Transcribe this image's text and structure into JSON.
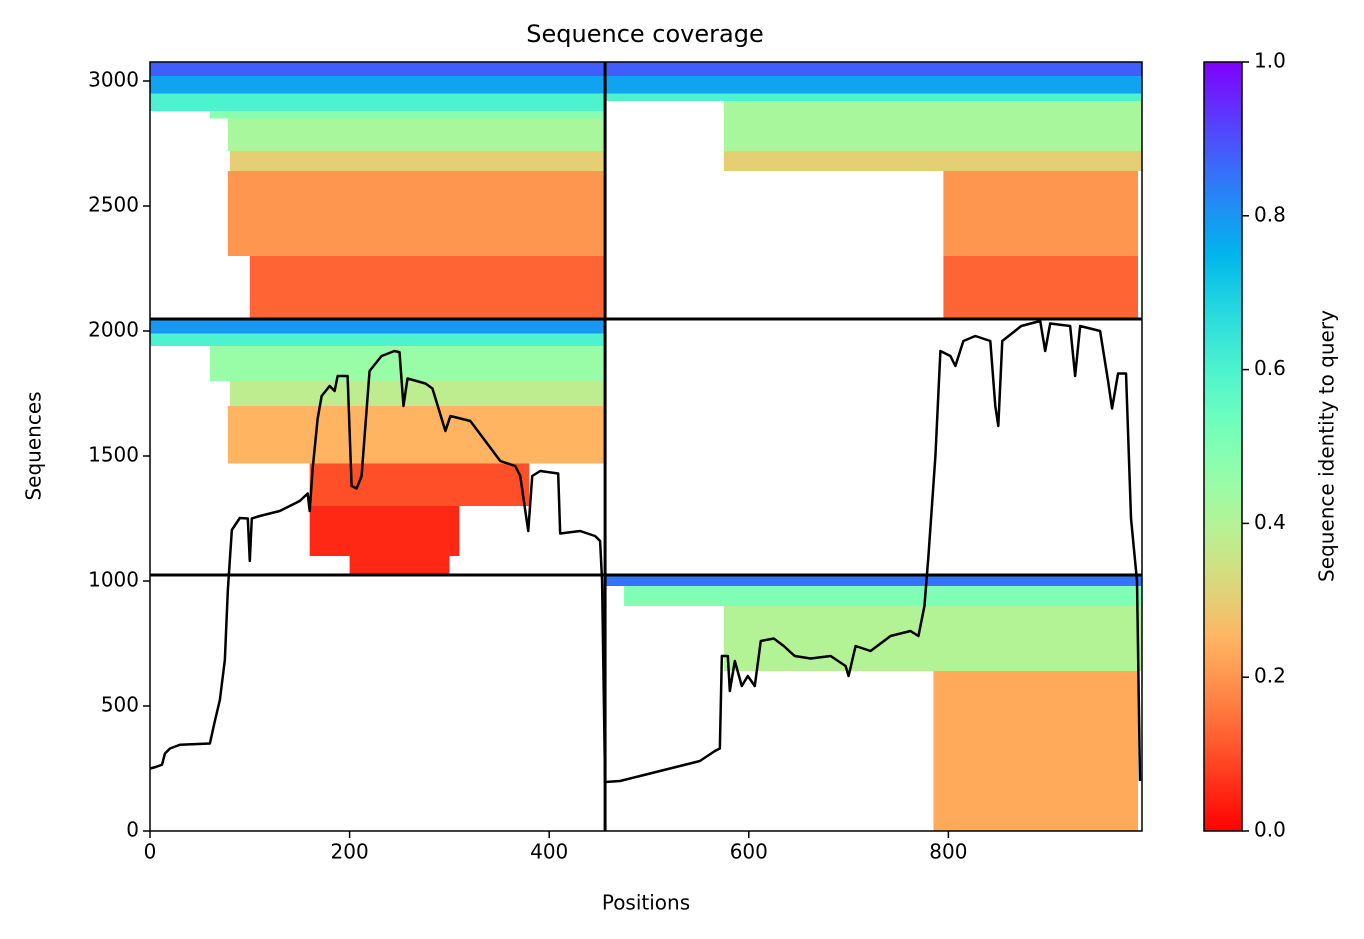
{
  "chart_data": {
    "type": "msa_coverage",
    "title": "Sequence coverage",
    "x_label": "Positions",
    "y_label": "Sequences",
    "colorbar_label": "Sequence identity to query",
    "colormap": "rainbow_r",
    "xlim": [
      0,
      994
    ],
    "ylim": [
      0,
      3076
    ],
    "xticks": [
      0,
      200,
      400,
      600,
      800
    ],
    "yticks": [
      0,
      500,
      1000,
      1500,
      2000,
      2500,
      3000
    ],
    "clim": [
      0,
      1
    ],
    "cticks": [
      {
        "value": 0,
        "label": "0.0"
      },
      {
        "value": 0.2,
        "label": "0.2"
      },
      {
        "value": 0.4,
        "label": "0.4"
      },
      {
        "value": 0.6,
        "label": "0.6"
      },
      {
        "value": 0.8,
        "label": "0.8"
      },
      {
        "value": 1,
        "label": "1.0"
      }
    ],
    "hlines": [
      1024,
      2048
    ],
    "vlines": [
      456
    ],
    "blocks": [
      {
        "x": [
          0,
          456
        ],
        "y": [
          3020,
          3076
        ],
        "identity": 0.88
      },
      {
        "x": [
          0,
          456
        ],
        "y": [
          2950,
          3020
        ],
        "identity": 0.78
      },
      {
        "x": [
          0,
          456
        ],
        "y": [
          2880,
          2950
        ],
        "identity": 0.6
      },
      {
        "x": [
          60,
          456
        ],
        "y": [
          2850,
          2880
        ],
        "identity": 0.48
      },
      {
        "x": [
          78,
          456
        ],
        "y": [
          2720,
          2850
        ],
        "identity": 0.42
      },
      {
        "x": [
          80,
          456
        ],
        "y": [
          2640,
          2720
        ],
        "identity": 0.3
      },
      {
        "x": [
          78,
          456
        ],
        "y": [
          2300,
          2640
        ],
        "identity": 0.2
      },
      {
        "x": [
          100,
          456
        ],
        "y": [
          2048,
          2300
        ],
        "identity": 0.13
      },
      {
        "x": [
          456,
          994
        ],
        "y": [
          3020,
          3076
        ],
        "identity": 0.88
      },
      {
        "x": [
          456,
          994
        ],
        "y": [
          2950,
          3020
        ],
        "identity": 0.78
      },
      {
        "x": [
          456,
          994
        ],
        "y": [
          2920,
          2950
        ],
        "identity": 0.6
      },
      {
        "x": [
          575,
          994
        ],
        "y": [
          2720,
          2920
        ],
        "identity": 0.42
      },
      {
        "x": [
          575,
          994
        ],
        "y": [
          2640,
          2720
        ],
        "identity": 0.3
      },
      {
        "x": [
          795,
          990
        ],
        "y": [
          2300,
          2640
        ],
        "identity": 0.2
      },
      {
        "x": [
          795,
          990
        ],
        "y": [
          2048,
          2300
        ],
        "identity": 0.13
      },
      {
        "x": [
          0,
          456
        ],
        "y": [
          1990,
          2048
        ],
        "identity": 0.8
      },
      {
        "x": [
          0,
          456
        ],
        "y": [
          1940,
          1990
        ],
        "identity": 0.6
      },
      {
        "x": [
          60,
          456
        ],
        "y": [
          1800,
          1940
        ],
        "identity": 0.45
      },
      {
        "x": [
          80,
          456
        ],
        "y": [
          1700,
          1800
        ],
        "identity": 0.38
      },
      {
        "x": [
          78,
          456
        ],
        "y": [
          1470,
          1700
        ],
        "identity": 0.25
      },
      {
        "x": [
          160,
          380
        ],
        "y": [
          1300,
          1470
        ],
        "identity": 0.1
      },
      {
        "x": [
          160,
          310
        ],
        "y": [
          1100,
          1300
        ],
        "identity": 0.05
      },
      {
        "x": [
          200,
          300
        ],
        "y": [
          1024,
          1100
        ],
        "identity": 0.05
      },
      {
        "x": [
          456,
          994
        ],
        "y": [
          980,
          1024
        ],
        "identity": 0.85
      },
      {
        "x": [
          475,
          994
        ],
        "y": [
          900,
          980
        ],
        "identity": 0.5
      },
      {
        "x": [
          575,
          994
        ],
        "y": [
          640,
          900
        ],
        "identity": 0.4
      },
      {
        "x": [
          785,
          990
        ],
        "y": [
          0,
          640
        ],
        "identity": 0.23
      }
    ],
    "coverage": {
      "color": "#000000",
      "x": [
        0,
        5,
        12,
        15,
        20,
        30,
        60,
        65,
        70,
        75,
        78,
        82,
        90,
        98,
        100,
        102,
        110,
        130,
        150,
        158,
        160,
        163,
        168,
        172,
        180,
        185,
        188,
        198,
        202,
        207,
        212,
        220,
        232,
        245,
        250,
        254,
        258,
        276,
        283,
        296,
        301,
        321,
        336,
        351,
        366,
        371,
        379,
        383,
        391,
        409,
        411,
        431,
        446,
        451,
        453,
        456,
        471,
        491,
        511,
        531,
        551,
        566,
        571,
        573,
        579,
        581,
        586,
        593,
        599,
        606,
        612,
        625,
        635,
        646,
        662,
        682,
        697,
        700,
        707,
        722,
        742,
        762,
        770,
        776,
        780,
        787,
        792,
        802,
        807,
        815,
        827,
        842,
        847,
        850,
        854,
        873,
        892,
        897,
        902,
        922,
        927,
        932,
        952,
        960,
        964,
        970,
        978,
        983,
        989,
        992
      ],
      "values": [
        250,
        255,
        265,
        310,
        330,
        345,
        350,
        440,
        524,
        684,
        964,
        1204,
        1252,
        1250,
        1080,
        1250,
        1260,
        1280,
        1320,
        1350,
        1280,
        1450,
        1650,
        1740,
        1780,
        1760,
        1820,
        1820,
        1380,
        1370,
        1420,
        1840,
        1900,
        1920,
        1915,
        1700,
        1810,
        1790,
        1770,
        1600,
        1660,
        1640,
        1560,
        1480,
        1460,
        1420,
        1200,
        1420,
        1440,
        1430,
        1190,
        1200,
        1180,
        1160,
        1000,
        196,
        200,
        220,
        240,
        260,
        280,
        320,
        330,
        700,
        700,
        560,
        680,
        580,
        620,
        580,
        760,
        770,
        740,
        700,
        690,
        700,
        660,
        620,
        740,
        720,
        780,
        800,
        780,
        900,
        1100,
        1500,
        1920,
        1900,
        1860,
        1960,
        1980,
        1960,
        1700,
        1620,
        1960,
        2020,
        2040,
        1920,
        2030,
        2020,
        1820,
        2020,
        2000,
        1800,
        1690,
        1830,
        1830,
        1250,
        1000,
        200
      ]
    }
  }
}
